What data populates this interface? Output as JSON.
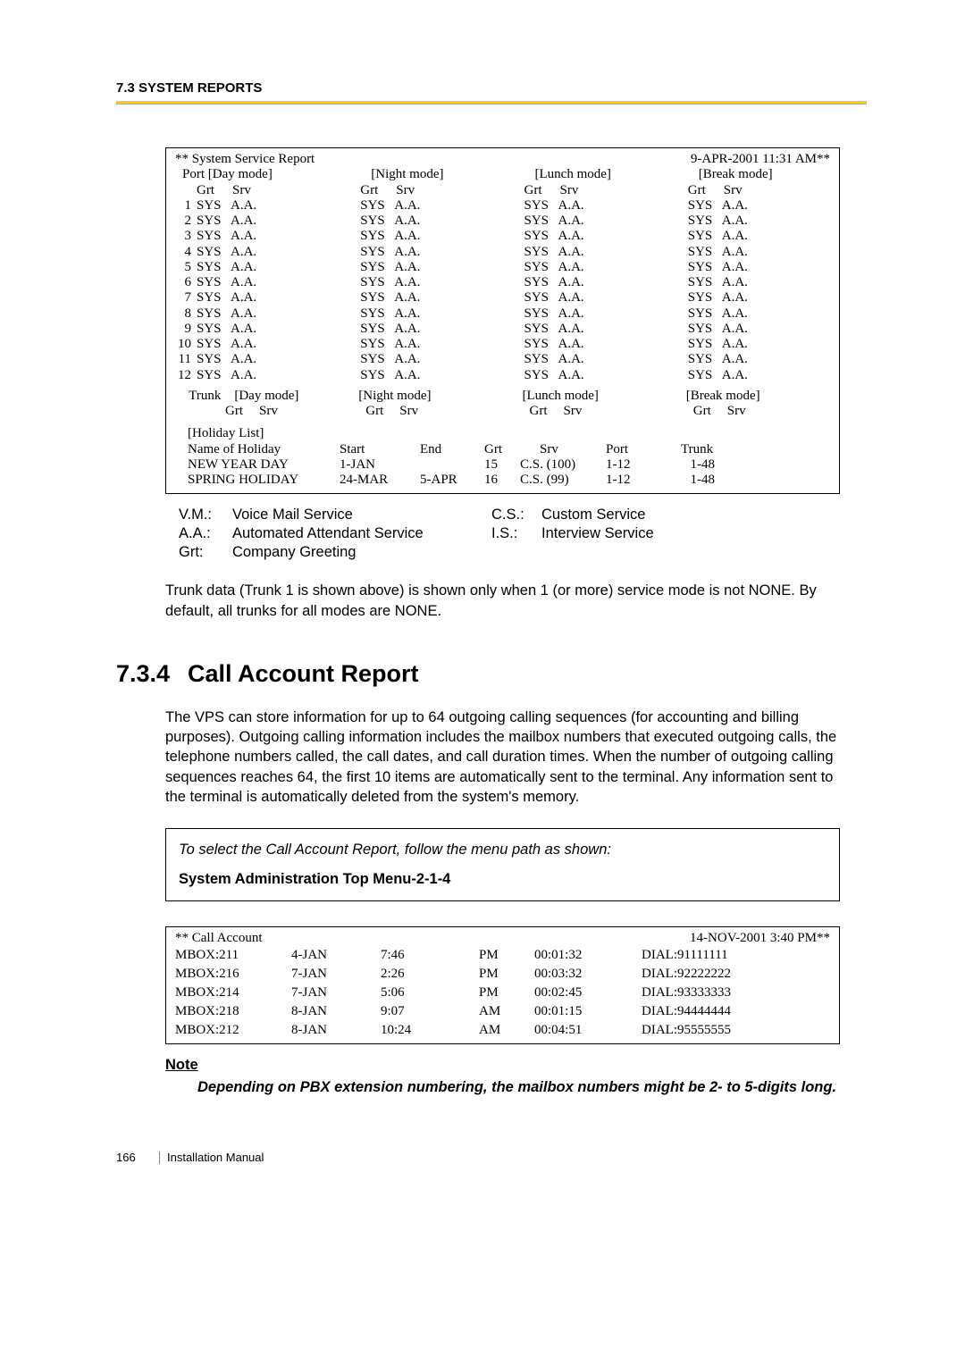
{
  "header": {
    "title": "7.3 SYSTEM REPORTS"
  },
  "report": {
    "title": "** System Service Report",
    "date": "9-APR-2001  11:31 AM**",
    "modes": [
      "[Day mode]",
      "[Night mode]",
      "[Lunch mode]",
      "[Break mode]"
    ],
    "port_label": "Port",
    "grt_label": "Grt",
    "srv_label": "Srv",
    "ports": [
      "1",
      "2",
      "3",
      "4",
      "5",
      "6",
      "7",
      "8",
      "9",
      "10",
      "11",
      "12"
    ],
    "cell_grt": "SYS",
    "cell_srv": "A.A.",
    "trunk_label": "Trunk",
    "holiday": {
      "header": "[Holiday List]",
      "cols": [
        "Name of Holiday",
        "Start",
        "End",
        "Grt",
        "Srv",
        "Port",
        "Trunk"
      ],
      "rows": [
        {
          "name": "NEW YEAR DAY",
          "start": "1-JAN",
          "end": "",
          "grt": "15",
          "srv": "C.S. (100)",
          "port": "1-12",
          "trunk": "1-48"
        },
        {
          "name": "SPRING HOLIDAY",
          "start": "24-MAR",
          "end": "5-APR",
          "grt": "16",
          "srv": "C.S. (99)",
          "port": "1-12",
          "trunk": "1-48"
        }
      ]
    }
  },
  "legend": {
    "rows": [
      {
        "l": "V.M.:",
        "t": "Voice Mail Service",
        "l2": "C.S.:",
        "t2": "Custom Service"
      },
      {
        "l": "A.A.:",
        "t": "Automated Attendant Service",
        "l2": "I.S.:",
        "t2": "Interview Service"
      },
      {
        "l": "Grt:",
        "t": "Company Greeting",
        "l2": "",
        "t2": ""
      }
    ]
  },
  "text1": "Trunk data (Trunk 1 is shown above) is shown only when 1 (or more) service mode is not NONE. By default, all trunks for all modes are NONE.",
  "s734": {
    "num": "7.3.4",
    "title": "Call Account Report",
    "body": "The VPS can store information for up to 64 outgoing calling sequences (for accounting and billing purposes). Outgoing calling information includes the mailbox numbers that executed outgoing calls, the telephone numbers called, the call dates, and call duration times. When the number of outgoing calling sequences reaches 64, the first 10 items are automatically sent to the terminal. Any information sent to the terminal is automatically deleted from the system's memory."
  },
  "instr": {
    "line1": "To select the Call Account Report, follow the menu path as shown:",
    "line2": "System Administration Top Menu-2-1-4"
  },
  "ca": {
    "title": "** Call Account",
    "date": "14-NOV-2001 3:40 PM**",
    "rows": [
      {
        "mbox": "MBOX:211",
        "date": "4-JAN",
        "time": "7:46",
        "ampm": "PM",
        "dur": "00:01:32",
        "dial": "DIAL:91111111"
      },
      {
        "mbox": "MBOX:216",
        "date": "7-JAN",
        "time": "2:26",
        "ampm": "PM",
        "dur": "00:03:32",
        "dial": "DIAL:92222222"
      },
      {
        "mbox": "MBOX:214",
        "date": "7-JAN",
        "time": "5:06",
        "ampm": "PM",
        "dur": "00:02:45",
        "dial": "DIAL:93333333"
      },
      {
        "mbox": "MBOX:218",
        "date": "8-JAN",
        "time": "9:07",
        "ampm": "AM",
        "dur": "00:01:15",
        "dial": "DIAL:94444444"
      },
      {
        "mbox": "MBOX:212",
        "date": "8-JAN",
        "time": "10:24",
        "ampm": "AM",
        "dur": "00:04:51",
        "dial": "DIAL:95555555"
      }
    ]
  },
  "note": {
    "h": "Note",
    "b": "Depending on PBX extension numbering, the mailbox numbers might be 2- to 5-digits long."
  },
  "footer": {
    "page": "166",
    "label": "Installation Manual"
  }
}
